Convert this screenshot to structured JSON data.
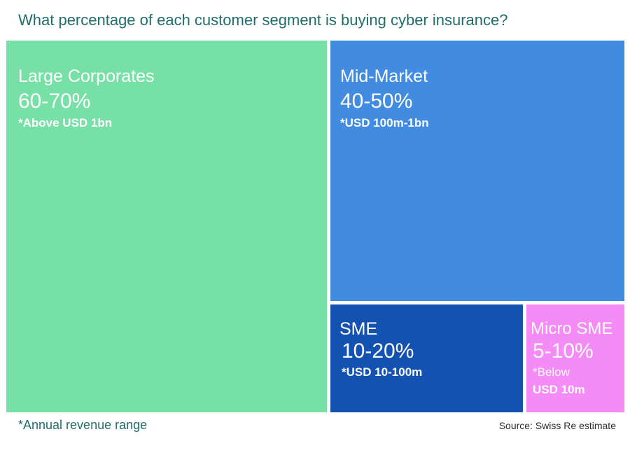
{
  "title": "What percentage of each customer segment is buying cyber insurance?",
  "chart_data": {
    "type": "treemap",
    "segments": [
      {
        "name": "Large Corporates",
        "range": "60-70%",
        "low": 60,
        "high": 70,
        "revenue": "*Above USD 1bn",
        "color": "#77e0a6"
      },
      {
        "name": "Mid-Market",
        "range": "40-50%",
        "low": 40,
        "high": 50,
        "revenue": "*USD 100m-1bn",
        "color": "#418be0"
      },
      {
        "name": "SME",
        "range": "10-20%",
        "low": 10,
        "high": 20,
        "revenue": "*USD 10-100m",
        "color": "#1452b1"
      },
      {
        "name": "Micro SME",
        "range": "5-10%",
        "low": 5,
        "high": 10,
        "revenue_line1": "*Below",
        "revenue_line2": "USD 10m",
        "color": "#f58bf6"
      }
    ]
  },
  "footnote": "*Annual revenue range",
  "source": "Source: Swiss Re estimate"
}
